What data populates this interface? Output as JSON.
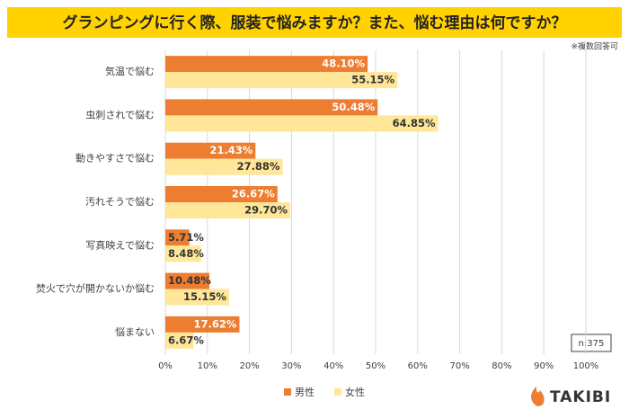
{
  "chart_data": {
    "type": "bar",
    "orientation": "horizontal",
    "title": "グランピングに行く際、服装で悩みますか？また、悩む理由は何ですか？",
    "note": "※複数回答可",
    "sample_size": "n:375",
    "categories": [
      "気温で悩む",
      "虫刺されで悩む",
      "動きやすさで悩む",
      "汚れそうで悩む",
      "写真映えで悩む",
      "焚火で穴が開かないか悩む",
      "悩まない"
    ],
    "series": [
      {
        "name": "男性",
        "color": "#ed7d31",
        "values": [
          48.1,
          50.48,
          21.43,
          26.67,
          5.71,
          10.48,
          17.62
        ],
        "value_labels": [
          "48.10%",
          "50.48%",
          "21.43%",
          "26.67%",
          "5.71%",
          "10.48%",
          "17.62%"
        ]
      },
      {
        "name": "女性",
        "color": "#ffe699",
        "values": [
          55.15,
          64.85,
          27.88,
          29.7,
          8.48,
          15.15,
          6.67
        ],
        "value_labels": [
          "55.15%",
          "64.85%",
          "27.88%",
          "29.70%",
          "8.48%",
          "15.15%",
          "6.67%"
        ]
      }
    ],
    "xlim": [
      0,
      100
    ],
    "xticks": [
      {
        "value": 0,
        "label": "0%"
      },
      {
        "value": 10,
        "label": "10%"
      },
      {
        "value": 20,
        "label": "20%"
      },
      {
        "value": 30,
        "label": "30%"
      },
      {
        "value": 40,
        "label": "40%"
      },
      {
        "value": 50,
        "label": "50%"
      },
      {
        "value": 60,
        "label": "60%"
      },
      {
        "value": 70,
        "label": "70%"
      },
      {
        "value": 80,
        "label": "80%"
      },
      {
        "value": 90,
        "label": "90%"
      },
      {
        "value": 100,
        "label": "100%"
      }
    ],
    "grid": true,
    "legend": "bottom"
  },
  "brand": "TAKIBI"
}
